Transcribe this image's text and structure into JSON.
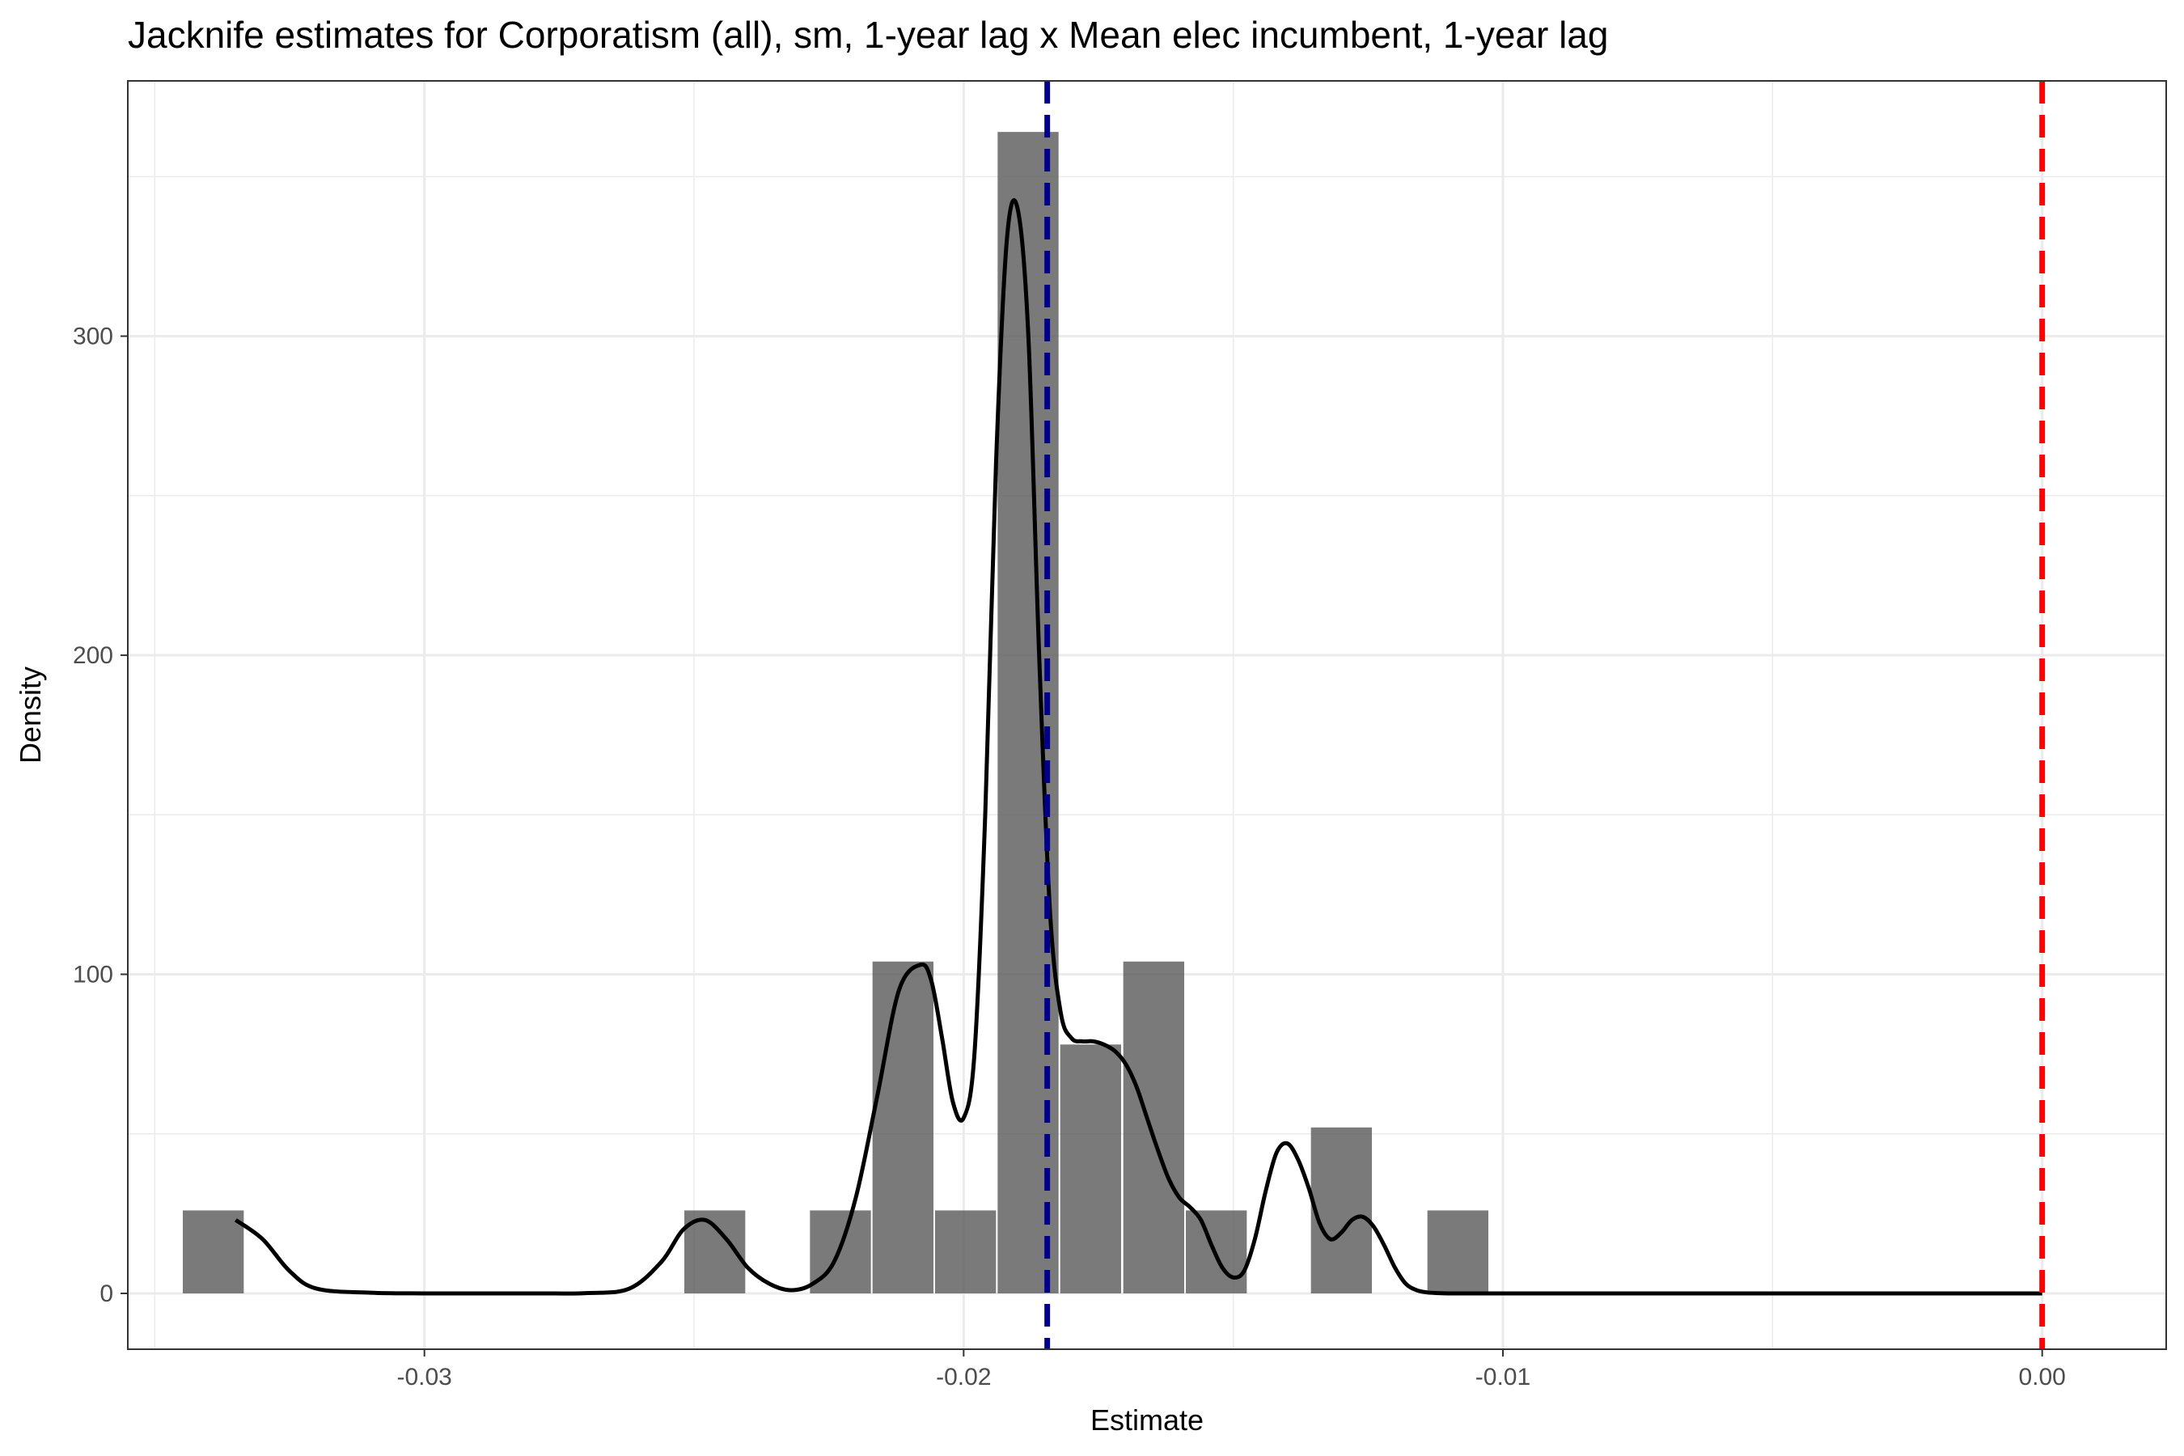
{
  "chart_data": {
    "type": "bar",
    "title": "Jacknife estimates for Corporatism (all), sm, 1-year lag x Mean elec incumbent, 1-year lag",
    "xlabel": "Estimate",
    "ylabel": "Density",
    "xlim": [
      -0.0355,
      0.0023
    ],
    "ylim": [
      -17.5,
      380
    ],
    "x_ticks": [
      {
        "value": -0.03,
        "label": "-0.03"
      },
      {
        "value": -0.02,
        "label": "-0.02"
      },
      {
        "value": -0.01,
        "label": "-0.01"
      },
      {
        "value": 0.0,
        "label": "0.00"
      }
    ],
    "y_ticks": [
      {
        "value": 0,
        "label": "0"
      },
      {
        "value": 100,
        "label": "100"
      },
      {
        "value": 200,
        "label": "200"
      },
      {
        "value": 300,
        "label": "300"
      }
    ],
    "grid": true,
    "bins": [
      {
        "x0": -0.03448,
        "x1": -0.03335,
        "density": 26
      },
      {
        "x0": -0.02518,
        "x1": -0.02405,
        "density": 26
      },
      {
        "x0": -0.02285,
        "x1": -0.02172,
        "density": 26
      },
      {
        "x0": -0.02169,
        "x1": -0.02056,
        "density": 104
      },
      {
        "x0": -0.02053,
        "x1": -0.0194,
        "density": 26
      },
      {
        "x0": -0.01937,
        "x1": -0.01824,
        "density": 364
      },
      {
        "x0": -0.01821,
        "x1": -0.01708,
        "density": 78
      },
      {
        "x0": -0.01704,
        "x1": -0.01591,
        "density": 104
      },
      {
        "x0": -0.01588,
        "x1": -0.01475,
        "density": 26
      },
      {
        "x0": -0.01356,
        "x1": -0.01243,
        "density": 52
      },
      {
        "x0": -0.0114,
        "x1": -0.01027,
        "density": 26
      }
    ],
    "density_curve": {
      "x": [
        -0.0335,
        -0.033,
        -0.0325,
        -0.032,
        -0.031,
        -0.03,
        -0.028,
        -0.027,
        -0.0262,
        -0.0256,
        -0.0252,
        -0.0248,
        -0.0244,
        -0.024,
        -0.0236,
        -0.0232,
        -0.0228,
        -0.0224,
        -0.022,
        -0.0216,
        -0.0212,
        -0.0208,
        -0.0206,
        -0.0204,
        -0.0202,
        -0.02,
        -0.0198,
        -0.0196,
        -0.0194,
        -0.0192,
        -0.019,
        -0.0188,
        -0.0186,
        -0.0184,
        -0.0182,
        -0.018,
        -0.0178,
        -0.0176,
        -0.0174,
        -0.0172,
        -0.017,
        -0.0168,
        -0.0166,
        -0.0164,
        -0.0162,
        -0.016,
        -0.0158,
        -0.0156,
        -0.0154,
        -0.0152,
        -0.015,
        -0.0148,
        -0.0146,
        -0.0144,
        -0.0142,
        -0.014,
        -0.0138,
        -0.0136,
        -0.0134,
        -0.0132,
        -0.013,
        -0.0128,
        -0.0126,
        -0.0124,
        -0.0122,
        -0.012,
        -0.0118,
        -0.0116,
        -0.0114,
        -0.0112,
        -0.011,
        -0.0108,
        -0.0106,
        -0.0104,
        -0.0102,
        -0.01,
        -0.0098,
        -0.0096,
        -0.0094,
        -0.009,
        -0.0085,
        -0.008,
        -0.006,
        -0.004,
        -0.002,
        0.0
      ],
      "y": [
        23,
        17,
        7,
        1.5,
        0.2,
        0,
        0,
        0.1,
        1.5,
        10,
        20,
        23,
        17,
        8,
        3,
        1,
        3,
        10,
        30,
        62,
        95,
        103,
        98,
        80,
        60,
        55,
        75,
        150,
        260,
        330,
        340,
        300,
        200,
        120,
        88,
        80,
        79,
        79,
        78,
        76,
        72,
        65,
        55,
        45,
        36,
        30,
        27,
        23,
        15,
        8,
        5,
        7,
        17,
        32,
        44,
        47,
        42,
        33,
        22,
        17,
        19,
        23,
        24,
        21,
        15,
        8,
        3,
        1,
        0.3,
        0.1,
        0,
        0,
        0,
        0,
        0,
        0,
        0,
        0,
        0,
        0,
        0,
        0,
        0,
        0,
        0,
        0
      ]
    },
    "reference_lines": [
      {
        "value": -0.01845,
        "color": "#00008b",
        "style": "dashed"
      },
      {
        "value": 0.0,
        "color": "#ff0000",
        "style": "dashed"
      }
    ],
    "bar_color": "#595959",
    "curve_color": "#000000"
  }
}
